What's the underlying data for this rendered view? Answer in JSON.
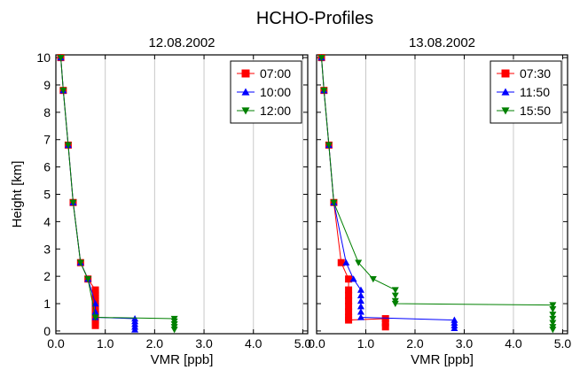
{
  "page": {
    "title": "HCHO-Profiles"
  },
  "chart_data": [
    {
      "type": "line",
      "title": "12.08.2002",
      "xlabel": "VMR [ppb]",
      "ylabel": "Height [km]",
      "xlim": [
        0,
        5.1
      ],
      "ylim": [
        -0.1,
        10.1
      ],
      "xticks": [
        "0.0",
        "1.0",
        "2.0",
        "3.0",
        "4.0",
        "5.0"
      ],
      "yticks": [
        "0",
        "1",
        "2",
        "3",
        "4",
        "5",
        "6",
        "7",
        "8",
        "9",
        "10"
      ],
      "grid": "vertical",
      "legend": "top-right",
      "series": [
        {
          "name": "07:00",
          "color": "#ff0000",
          "marker": "square",
          "x": [
            0.1,
            0.15,
            0.25,
            0.35,
            0.5,
            0.65,
            0.8,
            0.8,
            0.8,
            0.8,
            0.8,
            0.8,
            0.8,
            0.8,
            0.8,
            0.8,
            0.8,
            0.8,
            0.8,
            0.8
          ],
          "y": [
            10.0,
            8.8,
            6.8,
            4.7,
            2.5,
            1.9,
            1.5,
            1.4,
            1.3,
            1.2,
            1.1,
            1.0,
            0.9,
            0.8,
            0.7,
            0.6,
            0.5,
            0.4,
            0.3,
            0.2
          ]
        },
        {
          "name": "10:00",
          "color": "#0000ff",
          "marker": "triangle-up",
          "x": [
            0.1,
            0.15,
            0.25,
            0.35,
            0.5,
            0.65,
            0.8,
            0.8,
            0.8,
            1.6,
            1.6,
            1.6,
            1.6,
            1.6
          ],
          "y": [
            10.0,
            8.8,
            6.8,
            4.7,
            2.5,
            1.9,
            1.0,
            0.7,
            0.5,
            0.45,
            0.35,
            0.25,
            0.15,
            0.05
          ]
        },
        {
          "name": "12:00",
          "color": "#008000",
          "marker": "triangle-down",
          "x": [
            0.1,
            0.15,
            0.25,
            0.35,
            0.5,
            0.65,
            0.8,
            2.4,
            2.4,
            2.4,
            2.4,
            2.4
          ],
          "y": [
            10.0,
            8.8,
            6.8,
            4.7,
            2.5,
            1.9,
            0.5,
            0.45,
            0.35,
            0.25,
            0.15,
            0.05
          ]
        }
      ]
    },
    {
      "type": "line",
      "title": "13.08.2002",
      "xlabel": "VMR [ppb]",
      "ylabel": "",
      "xlim": [
        0,
        5.1
      ],
      "ylim": [
        -0.1,
        10.1
      ],
      "xticks": [
        "0.0",
        "1.0",
        "2.0",
        "3.0",
        "4.0",
        "5.0"
      ],
      "yticks": [
        "0",
        "1",
        "2",
        "3",
        "4",
        "5",
        "6",
        "7",
        "8",
        "9",
        "10"
      ],
      "grid": "vertical",
      "legend": "top-right",
      "series": [
        {
          "name": "07:30",
          "color": "#ff0000",
          "marker": "square",
          "x": [
            0.1,
            0.15,
            0.25,
            0.35,
            0.5,
            0.65,
            0.65,
            0.65,
            0.65,
            0.65,
            0.65,
            0.65,
            0.65,
            1.4,
            1.4,
            1.4
          ],
          "y": [
            10.0,
            8.8,
            6.8,
            4.7,
            2.5,
            1.9,
            1.5,
            1.3,
            1.1,
            0.9,
            0.7,
            0.5,
            0.4,
            0.45,
            0.3,
            0.15
          ]
        },
        {
          "name": "11:50",
          "color": "#0000ff",
          "marker": "triangle-up",
          "x": [
            0.1,
            0.15,
            0.25,
            0.35,
            0.6,
            0.75,
            0.9,
            0.9,
            0.9,
            0.9,
            0.9,
            0.9,
            2.8,
            2.8,
            2.8,
            2.8
          ],
          "y": [
            10.0,
            8.8,
            6.8,
            4.7,
            2.5,
            1.9,
            1.5,
            1.3,
            1.1,
            0.9,
            0.7,
            0.5,
            0.4,
            0.3,
            0.2,
            0.1
          ]
        },
        {
          "name": "15:50",
          "color": "#008000",
          "marker": "triangle-down",
          "x": [
            0.1,
            0.15,
            0.25,
            0.35,
            0.85,
            1.15,
            1.6,
            1.6,
            1.6,
            1.6,
            4.8,
            4.8,
            4.8,
            4.8,
            4.8,
            4.8,
            4.8
          ],
          "y": [
            10.0,
            8.8,
            6.8,
            4.7,
            2.5,
            1.9,
            1.5,
            1.3,
            1.1,
            1.0,
            0.95,
            0.8,
            0.6,
            0.45,
            0.3,
            0.15,
            0.05
          ]
        }
      ]
    }
  ]
}
